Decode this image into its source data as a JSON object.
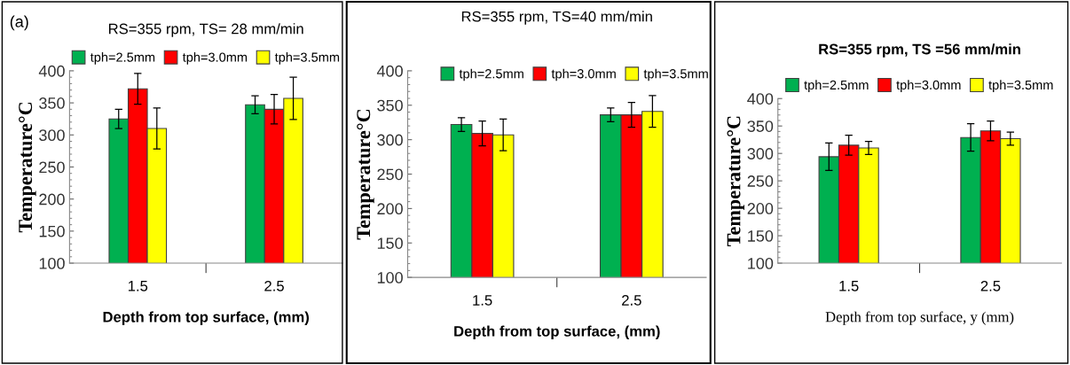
{
  "chart_data": [
    {
      "type": "bar",
      "title": "RS=355 rpm, TS= 28 mm/min",
      "xlabel": "Depth from top surface, (mm)",
      "ylabel": "Temperature°C",
      "annotations": [
        "(a)"
      ],
      "categories": [
        "1.5",
        "2.5"
      ],
      "ylim": [
        100,
        400
      ],
      "yticks": [
        100,
        150,
        200,
        250,
        300,
        350,
        400
      ],
      "grid": false,
      "legend": "top",
      "series": [
        {
          "name": "tph=2.5mm",
          "color": "#00b050",
          "values": [
            325,
            347
          ],
          "errors": [
            15,
            14
          ]
        },
        {
          "name": "tph=3.0mm",
          "color": "#ff0000",
          "values": [
            372,
            340
          ],
          "errors": [
            24,
            23
          ]
        },
        {
          "name": "tph=3.5mm",
          "color": "#ffff00",
          "values": [
            310,
            357
          ],
          "errors": [
            32,
            33
          ]
        }
      ]
    },
    {
      "type": "bar",
      "title": "RS=355 rpm, TS=40 mm/min",
      "xlabel": "Depth from top surface, (mm)",
      "ylabel": "Temperature°C",
      "categories": [
        "1.5",
        "2.5"
      ],
      "ylim": [
        100,
        400
      ],
      "yticks": [
        100,
        150,
        200,
        250,
        300,
        350,
        400
      ],
      "grid": false,
      "legend": "top",
      "series": [
        {
          "name": "tph=2.5mm",
          "color": "#00b050",
          "values": [
            322,
            336
          ],
          "errors": [
            10,
            10
          ]
        },
        {
          "name": "tph=3.0mm",
          "color": "#ff0000",
          "values": [
            309,
            336
          ],
          "errors": [
            18,
            18
          ]
        },
        {
          "name": "tph=3.5mm",
          "color": "#ffff00",
          "values": [
            307,
            341
          ],
          "errors": [
            23,
            23
          ]
        }
      ]
    },
    {
      "type": "bar",
      "title": "RS=355 rpm, TS =56 mm/min",
      "xlabel": "Depth from top surface, y (mm)",
      "ylabel": "Temperature°C",
      "categories": [
        "1.5",
        "2.5"
      ],
      "ylim": [
        100,
        400
      ],
      "yticks": [
        100,
        150,
        200,
        250,
        300,
        350,
        400
      ],
      "grid": false,
      "legend": "top",
      "series": [
        {
          "name": "tph=2.5mm",
          "color": "#00b050",
          "values": [
            294,
            329
          ],
          "errors": [
            25,
            25
          ]
        },
        {
          "name": "tph=3.0mm",
          "color": "#ff0000",
          "values": [
            315,
            341
          ],
          "errors": [
            18,
            18
          ]
        },
        {
          "name": "tph=3.5mm",
          "color": "#ffff00",
          "values": [
            310,
            327
          ],
          "errors": [
            12,
            12
          ]
        }
      ]
    }
  ]
}
